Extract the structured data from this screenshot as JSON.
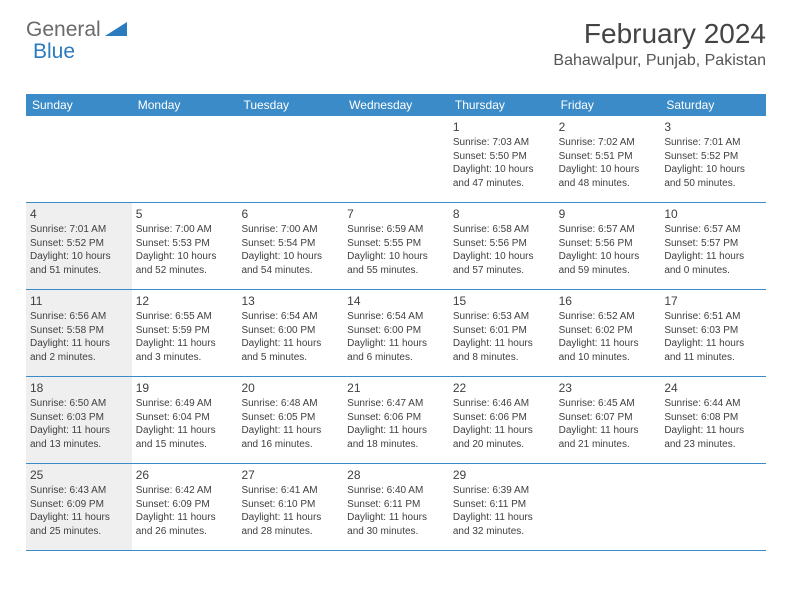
{
  "logo": {
    "text1": "General",
    "text2": "Blue"
  },
  "title": "February 2024",
  "location": "Bahawalpur, Punjab, Pakistan",
  "dayHeaders": [
    "Sunday",
    "Monday",
    "Tuesday",
    "Wednesday",
    "Thursday",
    "Friday",
    "Saturday"
  ],
  "colors": {
    "headerBar": "#3b8bc8",
    "shadedCell": "#efefef",
    "text": "#404040",
    "logoGray": "#6a6a6a",
    "logoBlue": "#2b7bbf"
  },
  "weeks": [
    [
      {
        "blank": true
      },
      {
        "blank": true
      },
      {
        "blank": true
      },
      {
        "blank": true
      },
      {
        "num": "1",
        "sunrise": "Sunrise: 7:03 AM",
        "sunset": "Sunset: 5:50 PM",
        "day1": "Daylight: 10 hours",
        "day2": "and 47 minutes."
      },
      {
        "num": "2",
        "sunrise": "Sunrise: 7:02 AM",
        "sunset": "Sunset: 5:51 PM",
        "day1": "Daylight: 10 hours",
        "day2": "and 48 minutes."
      },
      {
        "num": "3",
        "sunrise": "Sunrise: 7:01 AM",
        "sunset": "Sunset: 5:52 PM",
        "day1": "Daylight: 10 hours",
        "day2": "and 50 minutes."
      }
    ],
    [
      {
        "shaded": true,
        "num": "4",
        "sunrise": "Sunrise: 7:01 AM",
        "sunset": "Sunset: 5:52 PM",
        "day1": "Daylight: 10 hours",
        "day2": "and 51 minutes."
      },
      {
        "num": "5",
        "sunrise": "Sunrise: 7:00 AM",
        "sunset": "Sunset: 5:53 PM",
        "day1": "Daylight: 10 hours",
        "day2": "and 52 minutes."
      },
      {
        "num": "6",
        "sunrise": "Sunrise: 7:00 AM",
        "sunset": "Sunset: 5:54 PM",
        "day1": "Daylight: 10 hours",
        "day2": "and 54 minutes."
      },
      {
        "num": "7",
        "sunrise": "Sunrise: 6:59 AM",
        "sunset": "Sunset: 5:55 PM",
        "day1": "Daylight: 10 hours",
        "day2": "and 55 minutes."
      },
      {
        "num": "8",
        "sunrise": "Sunrise: 6:58 AM",
        "sunset": "Sunset: 5:56 PM",
        "day1": "Daylight: 10 hours",
        "day2": "and 57 minutes."
      },
      {
        "num": "9",
        "sunrise": "Sunrise: 6:57 AM",
        "sunset": "Sunset: 5:56 PM",
        "day1": "Daylight: 10 hours",
        "day2": "and 59 minutes."
      },
      {
        "num": "10",
        "sunrise": "Sunrise: 6:57 AM",
        "sunset": "Sunset: 5:57 PM",
        "day1": "Daylight: 11 hours",
        "day2": "and 0 minutes."
      }
    ],
    [
      {
        "shaded": true,
        "num": "11",
        "sunrise": "Sunrise: 6:56 AM",
        "sunset": "Sunset: 5:58 PM",
        "day1": "Daylight: 11 hours",
        "day2": "and 2 minutes."
      },
      {
        "num": "12",
        "sunrise": "Sunrise: 6:55 AM",
        "sunset": "Sunset: 5:59 PM",
        "day1": "Daylight: 11 hours",
        "day2": "and 3 minutes."
      },
      {
        "num": "13",
        "sunrise": "Sunrise: 6:54 AM",
        "sunset": "Sunset: 6:00 PM",
        "day1": "Daylight: 11 hours",
        "day2": "and 5 minutes."
      },
      {
        "num": "14",
        "sunrise": "Sunrise: 6:54 AM",
        "sunset": "Sunset: 6:00 PM",
        "day1": "Daylight: 11 hours",
        "day2": "and 6 minutes."
      },
      {
        "num": "15",
        "sunrise": "Sunrise: 6:53 AM",
        "sunset": "Sunset: 6:01 PM",
        "day1": "Daylight: 11 hours",
        "day2": "and 8 minutes."
      },
      {
        "num": "16",
        "sunrise": "Sunrise: 6:52 AM",
        "sunset": "Sunset: 6:02 PM",
        "day1": "Daylight: 11 hours",
        "day2": "and 10 minutes."
      },
      {
        "num": "17",
        "sunrise": "Sunrise: 6:51 AM",
        "sunset": "Sunset: 6:03 PM",
        "day1": "Daylight: 11 hours",
        "day2": "and 11 minutes."
      }
    ],
    [
      {
        "shaded": true,
        "num": "18",
        "sunrise": "Sunrise: 6:50 AM",
        "sunset": "Sunset: 6:03 PM",
        "day1": "Daylight: 11 hours",
        "day2": "and 13 minutes."
      },
      {
        "num": "19",
        "sunrise": "Sunrise: 6:49 AM",
        "sunset": "Sunset: 6:04 PM",
        "day1": "Daylight: 11 hours",
        "day2": "and 15 minutes."
      },
      {
        "num": "20",
        "sunrise": "Sunrise: 6:48 AM",
        "sunset": "Sunset: 6:05 PM",
        "day1": "Daylight: 11 hours",
        "day2": "and 16 minutes."
      },
      {
        "num": "21",
        "sunrise": "Sunrise: 6:47 AM",
        "sunset": "Sunset: 6:06 PM",
        "day1": "Daylight: 11 hours",
        "day2": "and 18 minutes."
      },
      {
        "num": "22",
        "sunrise": "Sunrise: 6:46 AM",
        "sunset": "Sunset: 6:06 PM",
        "day1": "Daylight: 11 hours",
        "day2": "and 20 minutes."
      },
      {
        "num": "23",
        "sunrise": "Sunrise: 6:45 AM",
        "sunset": "Sunset: 6:07 PM",
        "day1": "Daylight: 11 hours",
        "day2": "and 21 minutes."
      },
      {
        "num": "24",
        "sunrise": "Sunrise: 6:44 AM",
        "sunset": "Sunset: 6:08 PM",
        "day1": "Daylight: 11 hours",
        "day2": "and 23 minutes."
      }
    ],
    [
      {
        "shaded": true,
        "num": "25",
        "sunrise": "Sunrise: 6:43 AM",
        "sunset": "Sunset: 6:09 PM",
        "day1": "Daylight: 11 hours",
        "day2": "and 25 minutes."
      },
      {
        "num": "26",
        "sunrise": "Sunrise: 6:42 AM",
        "sunset": "Sunset: 6:09 PM",
        "day1": "Daylight: 11 hours",
        "day2": "and 26 minutes."
      },
      {
        "num": "27",
        "sunrise": "Sunrise: 6:41 AM",
        "sunset": "Sunset: 6:10 PM",
        "day1": "Daylight: 11 hours",
        "day2": "and 28 minutes."
      },
      {
        "num": "28",
        "sunrise": "Sunrise: 6:40 AM",
        "sunset": "Sunset: 6:11 PM",
        "day1": "Daylight: 11 hours",
        "day2": "and 30 minutes."
      },
      {
        "num": "29",
        "sunrise": "Sunrise: 6:39 AM",
        "sunset": "Sunset: 6:11 PM",
        "day1": "Daylight: 11 hours",
        "day2": "and 32 minutes."
      },
      {
        "blank": true
      },
      {
        "blank": true
      }
    ]
  ]
}
